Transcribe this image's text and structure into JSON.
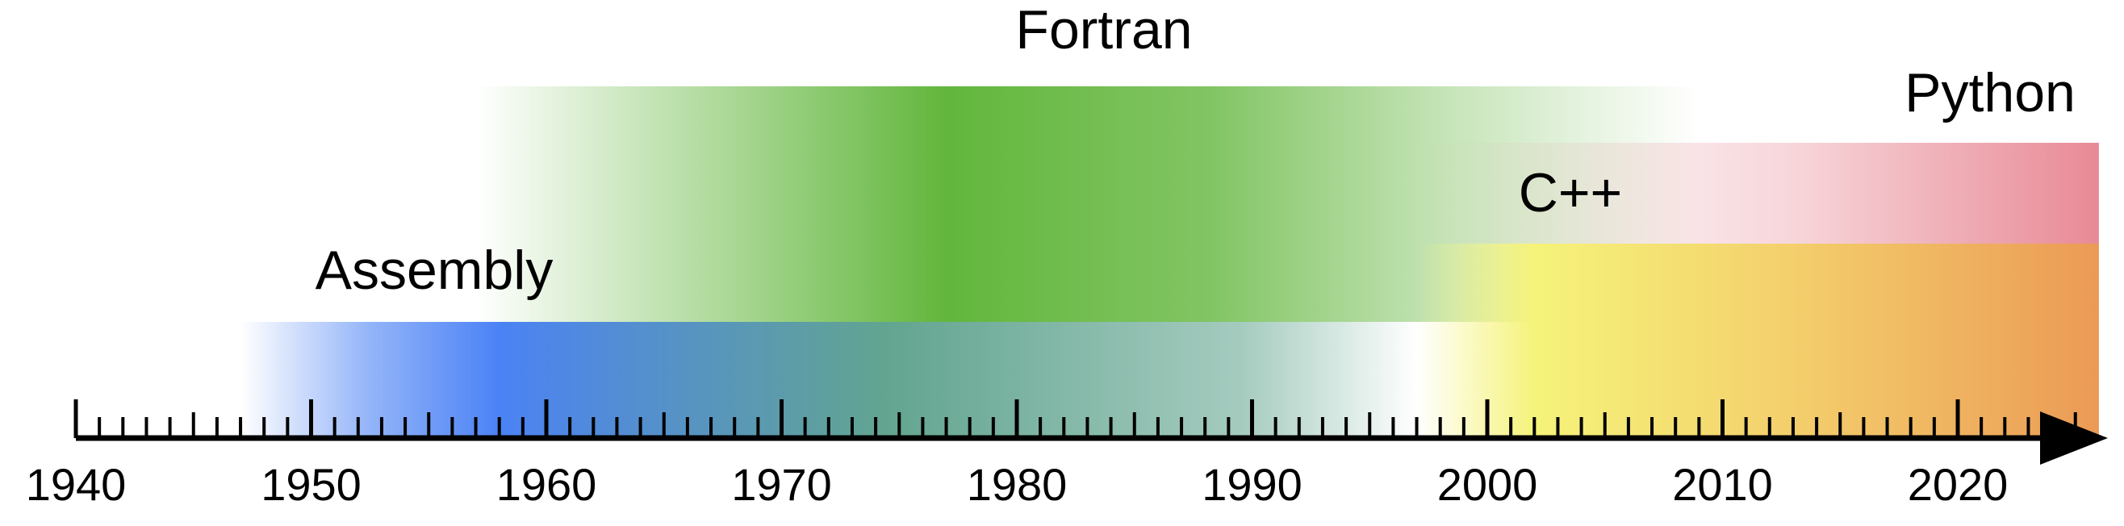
{
  "timeline": {
    "axis": {
      "start_year": 1940,
      "end_year": 2026,
      "minor_tick_step": 1,
      "major_tick_step": 10,
      "tick_labels": [
        "1940",
        "1950",
        "1960",
        "1970",
        "1980",
        "1990",
        "2000",
        "2010",
        "2020"
      ]
    },
    "bars": [
      {
        "language": "Fortran",
        "color": "#62b63c",
        "start_year": 1957,
        "end_year": 2009,
        "peak_year": 1977,
        "label": "Fortran"
      },
      {
        "language": "Assembly",
        "color": "#4b82f5",
        "start_year": 1947,
        "end_year": 1997,
        "peak_year": 1958,
        "label": "Assembly"
      },
      {
        "language": "C++",
        "color": "#f5f37a",
        "start_year": 1997,
        "end_year": 2026,
        "peak_year": 2002,
        "label": "C++"
      },
      {
        "language": "Python",
        "color": "#e88a96",
        "start_year": 1997,
        "end_year": 2026,
        "peak_year": 2026,
        "label": "Python"
      }
    ],
    "overlay_colors": {
      "cpp_end": "#eb9a55",
      "assembly_blend": "#5aa08a"
    }
  }
}
